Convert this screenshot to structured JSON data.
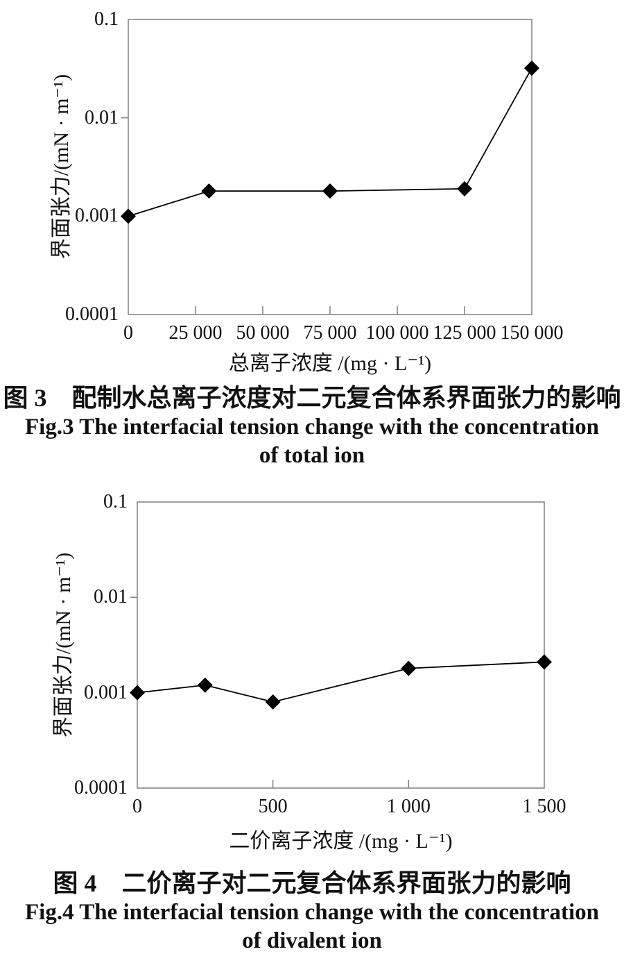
{
  "style": {
    "background_color": "#ffffff",
    "border_color": "#7f7f7f",
    "text_color": "#111111"
  },
  "figures": [
    {
      "caption_zh": "图 3　配制水总离子浓度对二元复合体系界面张力的影响",
      "caption_en_line1": "Fig.3 The interfacial tension change with the concentration",
      "caption_en_line2": "of total ion"
    },
    {
      "caption_zh": "图 4　二价离子对二元复合体系界面张力的影响",
      "caption_en_line1": "Fig.4 The interfacial tension change with the concentration",
      "caption_en_line2": "of divalent ion"
    }
  ],
  "chart_data": [
    {
      "type": "line",
      "title": "配制水总离子浓度对二元复合体系界面张力的影响",
      "x": [
        0,
        30000,
        75000,
        125000,
        150000
      ],
      "y": [
        0.001,
        0.0018,
        0.0018,
        0.0019,
        0.032
      ],
      "xlabel": "总离子浓度 /(mg · L⁻¹)",
      "ylabel": "界面张力/(mN · m⁻¹)",
      "xlim": [
        0,
        150000
      ],
      "ylim": [
        0.0001,
        0.1
      ],
      "y_scale": "log",
      "grid": false,
      "legend": "none",
      "x_ticks": [
        0,
        25000,
        50000,
        75000,
        100000,
        125000,
        150000
      ],
      "x_tick_labels": [
        "0",
        "25 000",
        "50 000",
        "75 000",
        "100 000",
        "125 000",
        "150 000"
      ],
      "y_ticks": [
        0.1,
        0.01,
        0.001,
        0.0001
      ],
      "y_tick_labels": [
        "0.1",
        "0.01",
        "0.001",
        "0.0001"
      ],
      "marker": "diamond",
      "marker_color": "#000000",
      "line_color": "#000000"
    },
    {
      "type": "line",
      "title": "二价离子对二元复合体系界面张力的影响",
      "x": [
        0,
        250,
        500,
        1000,
        1500
      ],
      "y": [
        0.001,
        0.0012,
        0.0008,
        0.0018,
        0.0021
      ],
      "xlabel": "二价离子浓度 /(mg · L⁻¹)",
      "ylabel": "界面张力/(mN · m⁻¹)",
      "xlim": [
        0,
        1500
      ],
      "ylim": [
        0.0001,
        0.1
      ],
      "y_scale": "log",
      "grid": false,
      "legend": "none",
      "x_ticks": [
        0,
        500,
        1000,
        1500
      ],
      "x_tick_labels": [
        "0",
        "500",
        "1 000",
        "1 500"
      ],
      "y_ticks": [
        0.1,
        0.01,
        0.001,
        0.0001
      ],
      "y_tick_labels": [
        "0.1",
        "0.01",
        "0.001",
        "0.0001"
      ],
      "marker": "diamond",
      "marker_color": "#000000",
      "line_color": "#000000"
    }
  ]
}
